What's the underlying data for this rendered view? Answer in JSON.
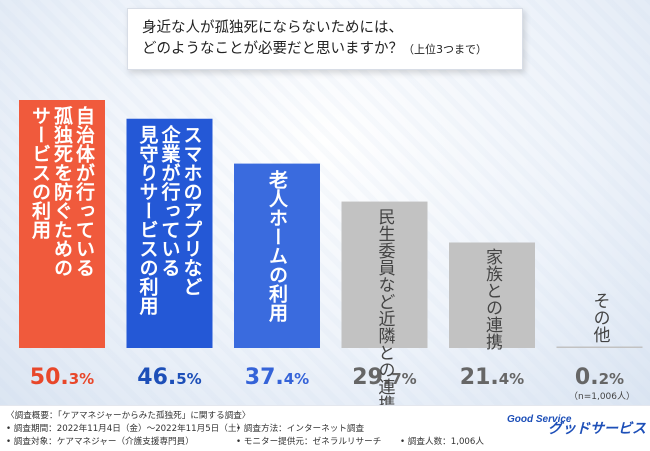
{
  "question": {
    "line1": "身近な人が孤独死にならないためには、",
    "line2": "どのようなことが必要だと思いますか？",
    "line2_note": "（上位3つまで）"
  },
  "chart_data": {
    "type": "bar",
    "categories": [
      "自治体が行っている孤独死を防ぐためのサービスの利用",
      "スマホのアプリなど企業が行っている見守りサービスの利用",
      "老人ホームの利用",
      "民生委員など近隣との連携",
      "家族との連携",
      "その他"
    ],
    "category_lines": [
      [
        "自治体が行っている",
        "孤独死を防ぐための",
        "サービスの利用"
      ],
      [
        "スマホのアプリなど",
        "企業が行っている",
        "見守りサービスの利用"
      ],
      [
        "老人ホームの利用"
      ],
      [
        "民生委員など近隣との連携"
      ],
      [
        "家族との連携"
      ],
      [
        "その他"
      ]
    ],
    "values": [
      50.3,
      46.5,
      37.4,
      29.7,
      21.4,
      0.2
    ],
    "value_labels": [
      {
        "int": "50.",
        "dec": "3%"
      },
      {
        "int": "46.",
        "dec": "5%"
      },
      {
        "int": "37.",
        "dec": "4%"
      },
      {
        "int": "29.",
        "dec": "7%"
      },
      {
        "int": "21.",
        "dec": "4%"
      },
      {
        "int": "0.",
        "dec": "2%"
      }
    ],
    "colors": [
      "#f05a3c",
      "#2458d6",
      "#3a6bde",
      "#c2c2c2",
      "#c2c2c2",
      "#c2c2c2"
    ],
    "label_colors": [
      "#e8472a",
      "#1d4fb8",
      "#3563d8",
      "#666666",
      "#666666",
      "#666666"
    ],
    "text_colors": [
      "#ffffff",
      "#ffffff",
      "#ffffff",
      "#444444",
      "#444444",
      "#444444"
    ],
    "ylim": [
      0,
      50.3
    ],
    "sample_note": "（n=1,006人）"
  },
  "footer": {
    "overview": "〈調査概要：「ケアマネジャーからみた孤独死」に関する調査〉",
    "period": "• 調査期間：2022年11月4日（金）〜2022年11月5日（土）",
    "method": "• 調査方法：インターネット調査",
    "target": "• 調査対象：ケアマネジャー（介護支援専門員）",
    "provider": "• モニター提供元：ゼネラルリサーチ",
    "count": "• 調査人数：1,006人",
    "logo_mark": "Good Service",
    "logo_text": "グッドサービス"
  }
}
